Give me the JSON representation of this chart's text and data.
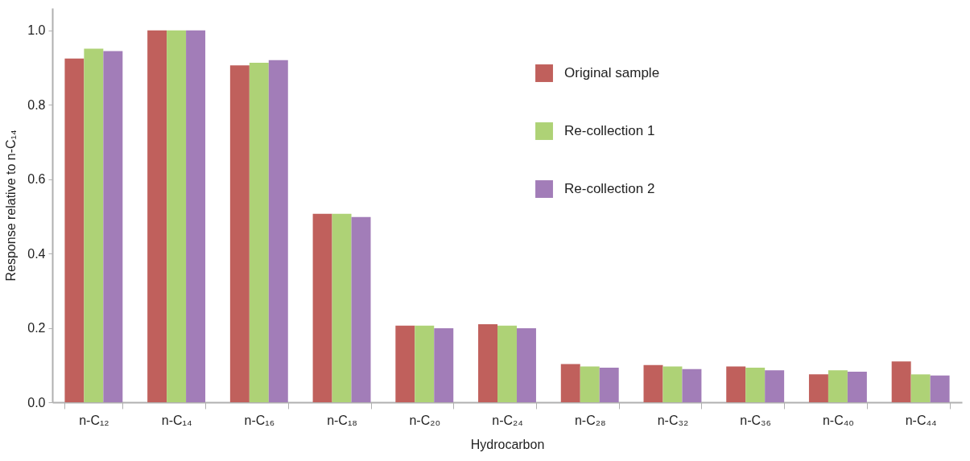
{
  "chart_data": {
    "type": "bar",
    "xlabel": "Hydrocarbon",
    "ylabel": "Response relative to n-C₁₄",
    "categories": [
      "n-C₁₂",
      "n-C₁₄",
      "n-C₁₆",
      "n-C₁₈",
      "n-C₂₀",
      "n-C₂₄",
      "n-C₂₈",
      "n-C₃₂",
      "n-C₃₆",
      "n-C₄₀",
      "n-C₄₄"
    ],
    "series": [
      {
        "name": "Original sample",
        "color": "#c0605c",
        "values": [
          0.924,
          1.0,
          0.906,
          0.507,
          0.206,
          0.21,
          0.103,
          0.1,
          0.096,
          0.075,
          0.11
        ]
      },
      {
        "name": "Re-collection 1",
        "color": "#aed276",
        "values": [
          0.951,
          1.0,
          0.913,
          0.507,
          0.206,
          0.206,
          0.096,
          0.096,
          0.093,
          0.086,
          0.075
        ]
      },
      {
        "name": "Re-collection 2",
        "color": "#a27db8",
        "values": [
          0.944,
          1.0,
          0.92,
          0.498,
          0.199,
          0.199,
          0.093,
          0.089,
          0.086,
          0.082,
          0.072
        ]
      }
    ],
    "ylim": [
      0,
      1.06
    ],
    "yticks": [
      {
        "value": 0,
        "label": "0.0"
      },
      0.2,
      0.4,
      0.6,
      0.8,
      {
        "value": 1,
        "label": "1.0"
      }
    ],
    "grid": false,
    "legend": "top right"
  }
}
